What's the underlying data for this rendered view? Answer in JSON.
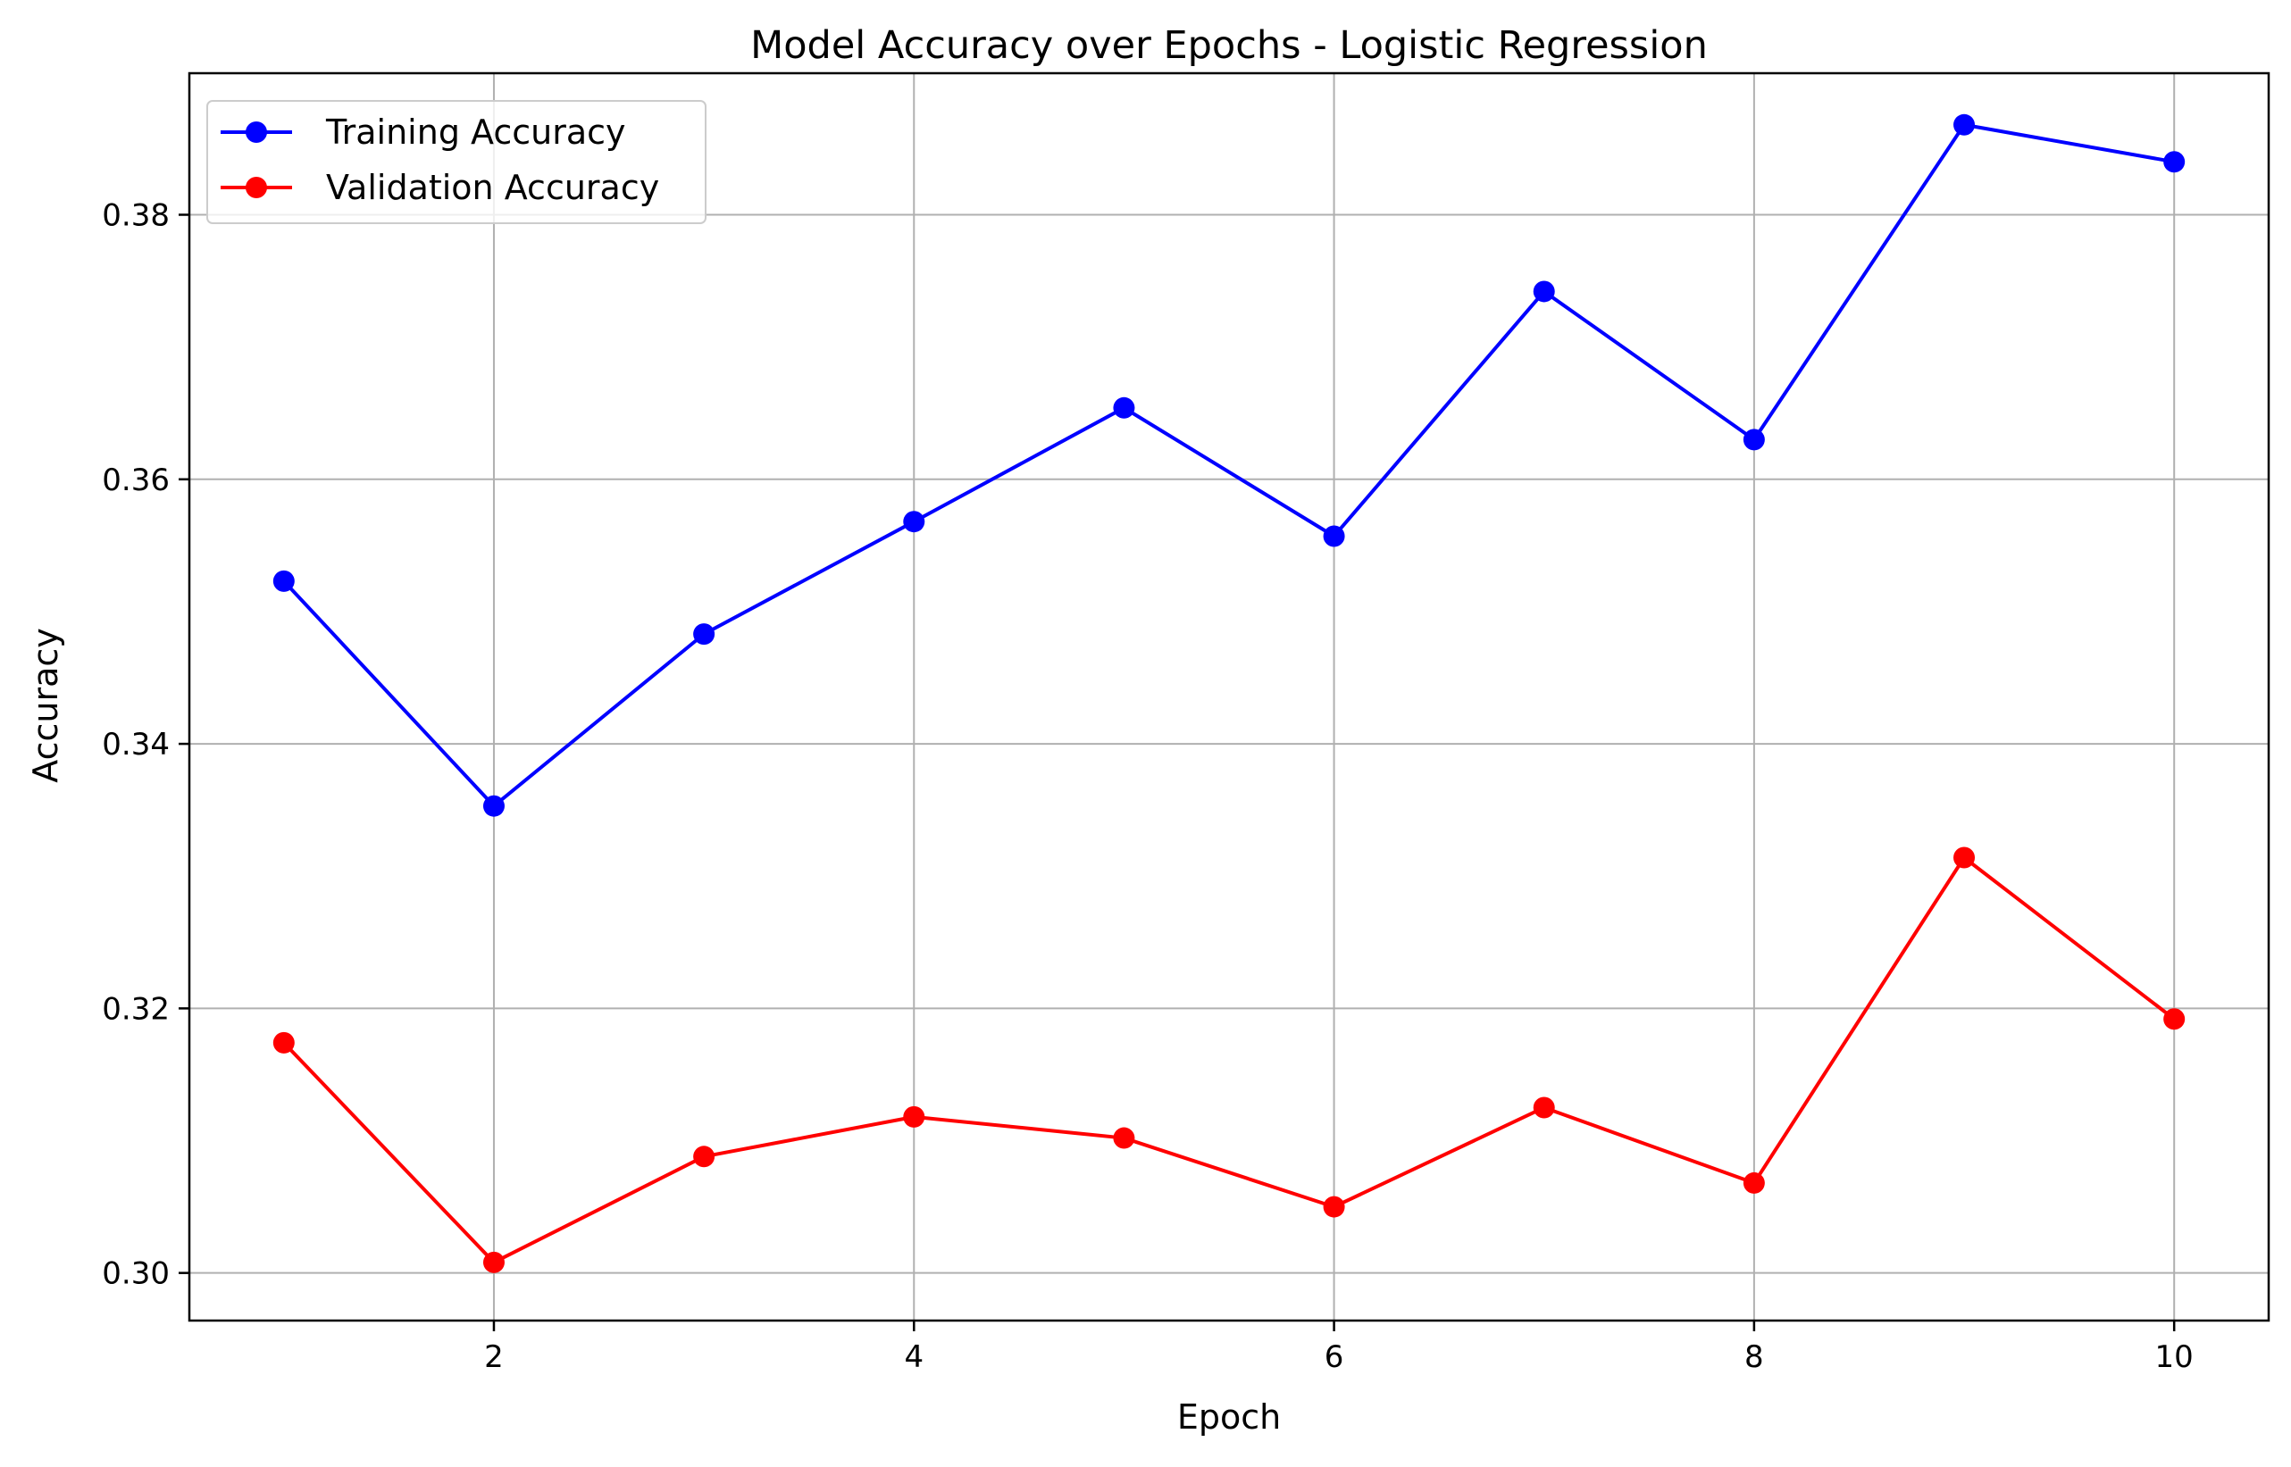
{
  "chart_data": {
    "type": "line",
    "title": "Model Accuracy over Epochs - Logistic Regression",
    "xlabel": "Epoch",
    "ylabel": "Accuracy",
    "x": [
      1,
      2,
      3,
      4,
      5,
      6,
      7,
      8,
      9,
      10
    ],
    "xlim": [
      0.55,
      10.45
    ],
    "ylim": [
      0.2964,
      0.3907
    ],
    "xticks": [
      2,
      4,
      6,
      8,
      10
    ],
    "xtick_labels": [
      "2",
      "4",
      "6",
      "8",
      "10"
    ],
    "yticks": [
      0.3,
      0.32,
      0.34,
      0.36,
      0.38
    ],
    "ytick_labels": [
      "0.30",
      "0.32",
      "0.34",
      "0.36",
      "0.38"
    ],
    "grid": true,
    "legend_position": "top-left",
    "series": [
      {
        "name": "Training Accuracy",
        "color": "#0000ff",
        "marker": "circle",
        "values": [
          0.3523,
          0.3353,
          0.3483,
          0.3568,
          0.3654,
          0.3557,
          0.3742,
          0.363,
          0.3868,
          0.384
        ]
      },
      {
        "name": "Validation Accuracy",
        "color": "#ff0000",
        "marker": "circle",
        "values": [
          0.3174,
          0.3008,
          0.3088,
          0.3118,
          0.3102,
          0.305,
          0.3125,
          0.3068,
          0.3314,
          0.3192
        ]
      }
    ]
  }
}
